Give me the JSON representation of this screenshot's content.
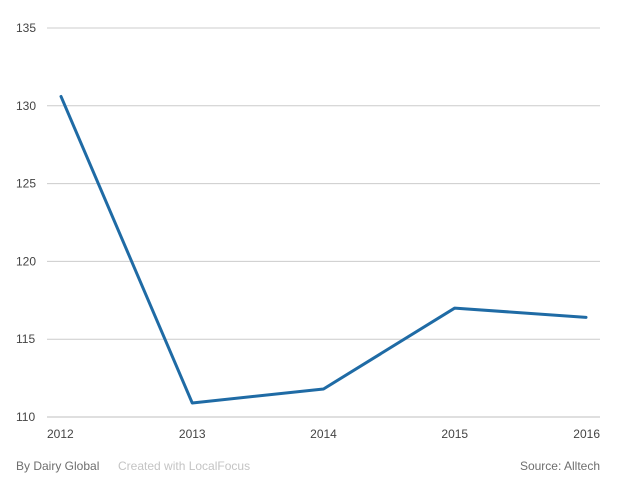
{
  "chart_data": {
    "type": "line",
    "categories": [
      "2012",
      "2013",
      "2014",
      "2015",
      "2016"
    ],
    "series": [
      {
        "values": [
          130.6,
          110.9,
          111.8,
          117.0,
          116.4
        ],
        "color": "#1f6ba5"
      }
    ],
    "ylim": [
      110,
      135
    ],
    "yticks": [
      110,
      115,
      120,
      125,
      130,
      135
    ],
    "grid": true,
    "gridColor": "#cccccc",
    "title": "",
    "xlabel": "",
    "ylabel": ""
  },
  "footer": {
    "credit": "By Dairy Global",
    "created_with": "Created with LocalFocus",
    "source": "Source:  Alltech"
  }
}
